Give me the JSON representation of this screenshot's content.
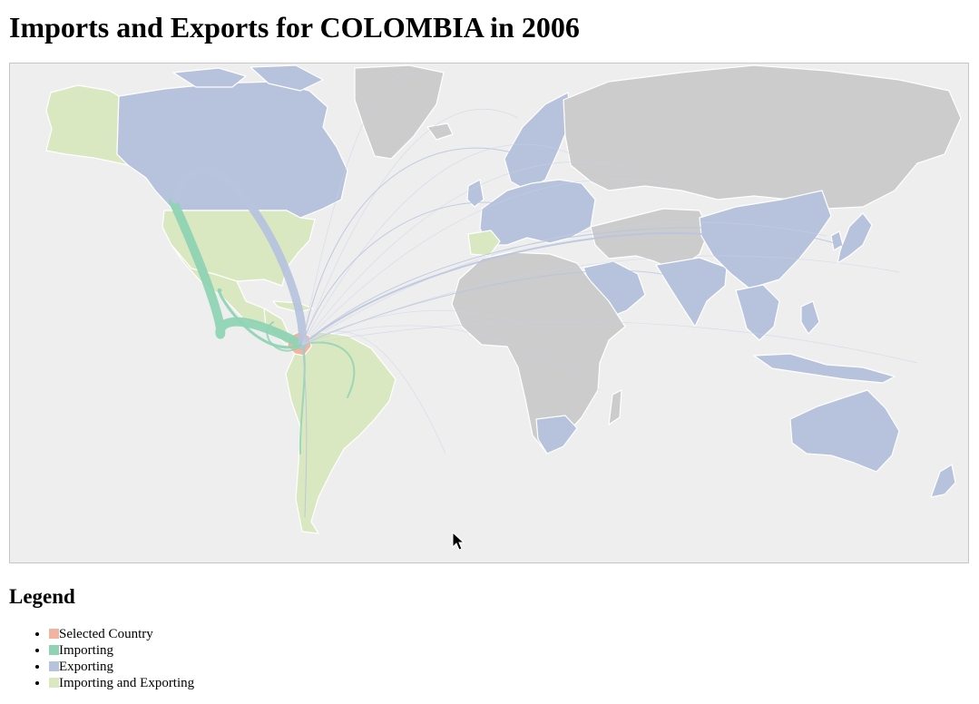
{
  "title": "Imports and Exports for COLOMBIA in 2006",
  "legend": {
    "heading": "Legend",
    "items": [
      {
        "label": "Selected Country",
        "color": "#f2b3a0"
      },
      {
        "label": "Importing",
        "color": "#8fd3b4"
      },
      {
        "label": "Exporting",
        "color": "#b7c3dd"
      },
      {
        "label": "Importing and Exporting",
        "color": "#d9e8c0"
      }
    ]
  },
  "map": {
    "selected_country": "COLOMBIA",
    "year": "2006",
    "colors": {
      "ocean": "#eeeeee",
      "no_trade": "#cccccc",
      "selected": "#f2b3a0",
      "importing": "#8fd3b4",
      "exporting": "#b7c3dd",
      "importing_and_exporting": "#d9e8c0"
    },
    "regions": [
      {
        "name": "Alaska",
        "status": "importing_and_exporting"
      },
      {
        "name": "Canada",
        "status": "exporting"
      },
      {
        "name": "Greenland",
        "status": "none"
      },
      {
        "name": "United States",
        "status": "importing_and_exporting"
      },
      {
        "name": "Mexico",
        "status": "importing_and_exporting"
      },
      {
        "name": "Central America",
        "status": "importing_and_exporting"
      },
      {
        "name": "Colombia",
        "status": "selected"
      },
      {
        "name": "South America",
        "status": "importing_and_exporting"
      },
      {
        "name": "Europe",
        "status": "exporting"
      },
      {
        "name": "Scandinavia",
        "status": "exporting"
      },
      {
        "name": "Russia",
        "status": "none"
      },
      {
        "name": "Africa",
        "status": "none"
      },
      {
        "name": "Arabian Peninsula",
        "status": "exporting"
      },
      {
        "name": "Middle East",
        "status": "none"
      },
      {
        "name": "India",
        "status": "exporting"
      },
      {
        "name": "China",
        "status": "exporting"
      },
      {
        "name": "Japan",
        "status": "exporting"
      },
      {
        "name": "Southeast Asia",
        "status": "exporting"
      },
      {
        "name": "Indonesia",
        "status": "exporting"
      },
      {
        "name": "Australia",
        "status": "exporting"
      },
      {
        "name": "New Zealand",
        "status": "exporting"
      }
    ],
    "flows": [
      {
        "partner": "United States",
        "type": "importing",
        "weight": 10
      },
      {
        "partner": "Canada",
        "type": "exporting",
        "weight": 9
      },
      {
        "partner": "Mexico",
        "type": "importing",
        "weight": 3
      },
      {
        "partner": "Central America",
        "type": "importing",
        "weight": 2
      },
      {
        "partner": "Brazil",
        "type": "importing",
        "weight": 2
      },
      {
        "partner": "Chile",
        "type": "importing",
        "weight": 2
      },
      {
        "partner": "Argentina",
        "type": "exporting",
        "weight": 1
      },
      {
        "partner": "China",
        "type": "exporting",
        "weight": 2
      },
      {
        "partner": "Japan",
        "type": "exporting",
        "weight": 1
      },
      {
        "partner": "Europe",
        "type": "exporting",
        "weight": 1
      },
      {
        "partner": "Scandinavia",
        "type": "exporting",
        "weight": 1
      },
      {
        "partner": "India",
        "type": "exporting",
        "weight": 1
      }
    ]
  }
}
